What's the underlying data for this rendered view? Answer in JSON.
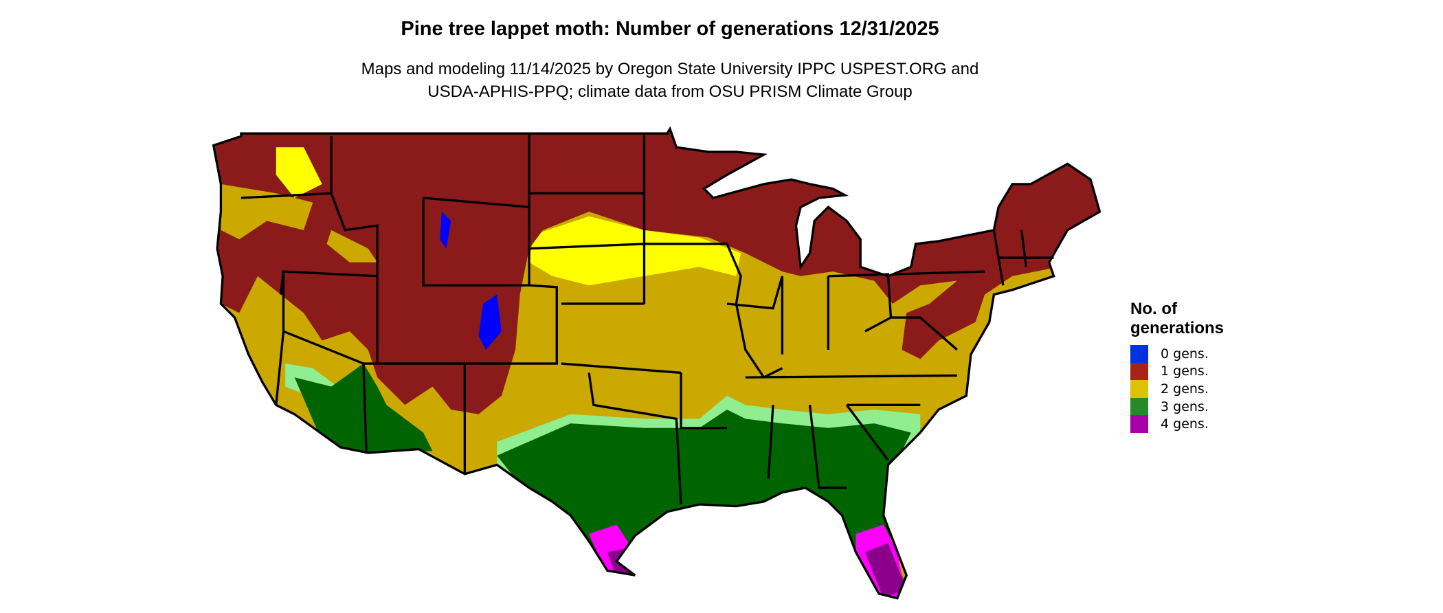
{
  "title": "Pine tree lappet moth: Number of generations 12/31/2025",
  "subtitle_line1": "Maps and modeling 11/14/2025 by Oregon State University IPPC USPEST.ORG and",
  "subtitle_line2": "USDA-APHIS-PPQ; climate data from OSU PRISM Climate Group",
  "legend": {
    "title_line1": "No. of",
    "title_line2": "generations",
    "items": [
      {
        "label": "0 gens.",
        "color": "#0033dd"
      },
      {
        "label": "1 gens.",
        "color": "#a82515"
      },
      {
        "label": "2 gens.",
        "color": "#dcc200"
      },
      {
        "label": "3 gens.",
        "color": "#268a26"
      },
      {
        "label": "4 gens.",
        "color": "#a800a8"
      }
    ]
  },
  "map_colors": {
    "zero": "#0000ff",
    "one": "#8b1a1a",
    "two": "#cba900",
    "two_light": "#ffff00",
    "three": "#006400",
    "three_light": "#90ee90",
    "four_light": "#ff00ff",
    "four": "#8b008b",
    "border": "#000000"
  }
}
